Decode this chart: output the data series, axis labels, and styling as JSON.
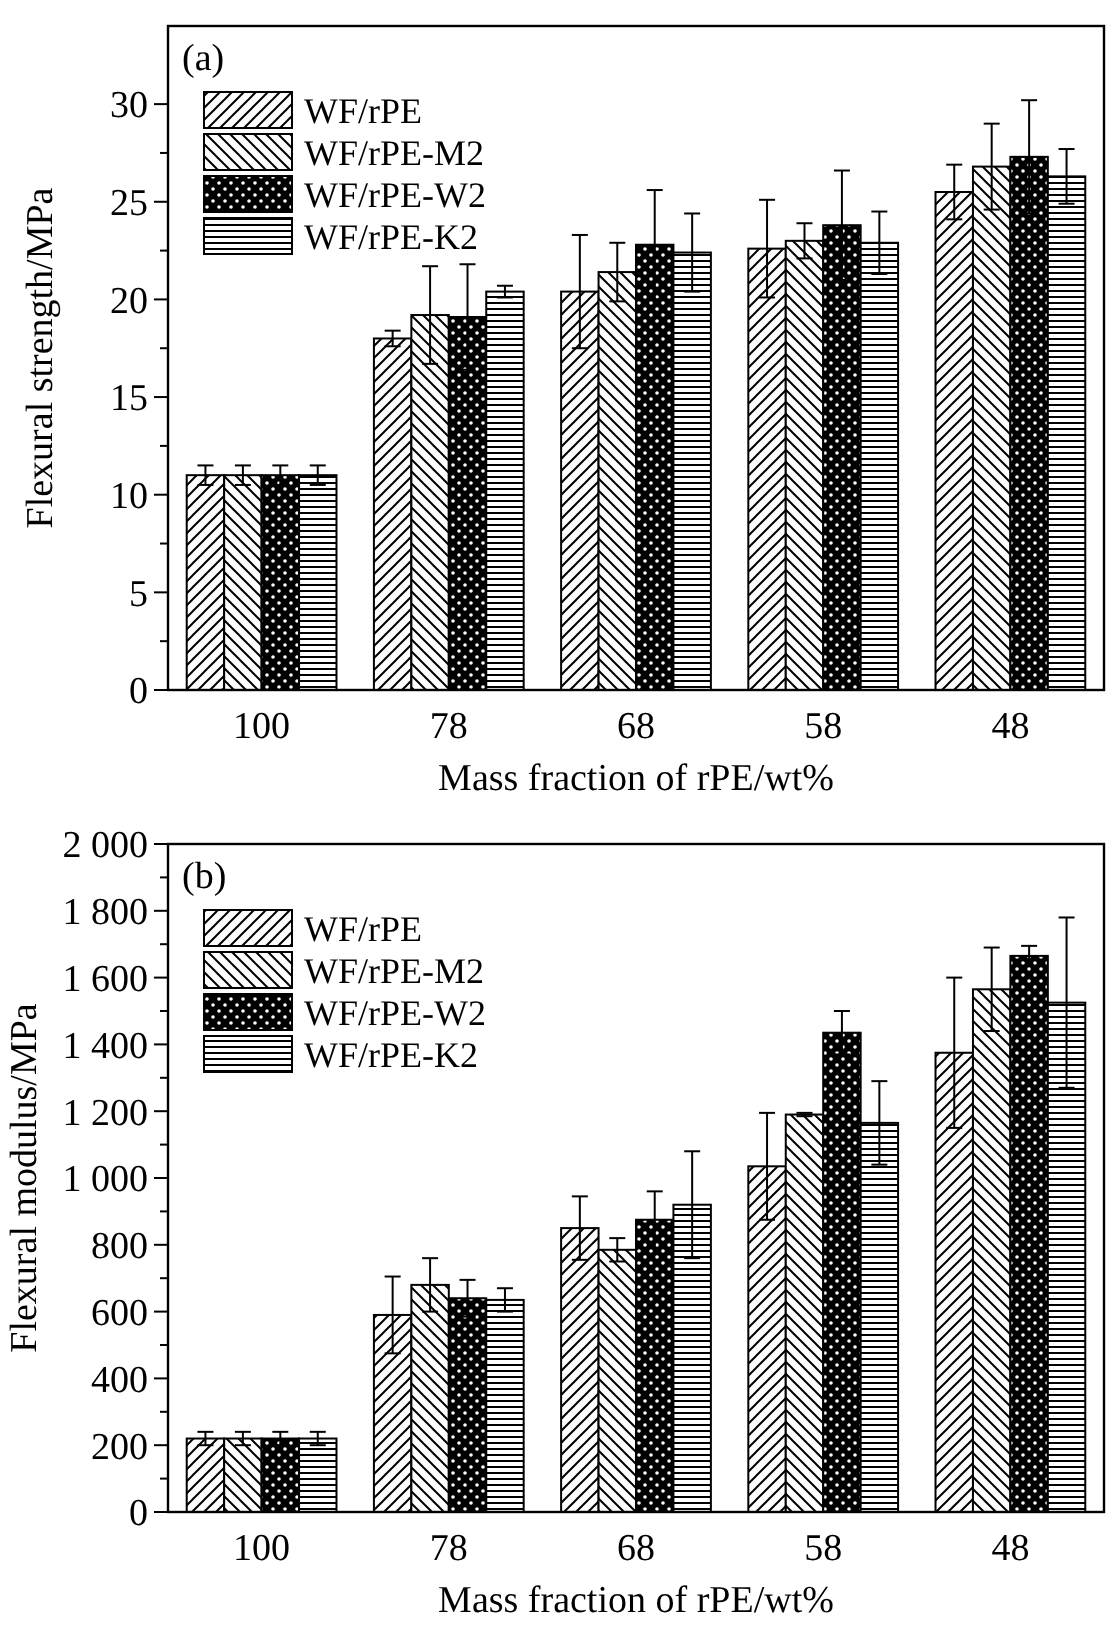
{
  "chart_data": [
    {
      "type": "bar",
      "annotations": [
        "(a)"
      ],
      "xlabel": "Mass fraction of rPE/wt%",
      "ylabel": "Flexural strength/MPa",
      "categories": [
        "100",
        "78",
        "68",
        "58",
        "48"
      ],
      "ylim": [
        0,
        34
      ],
      "yticks": [
        0,
        5,
        10,
        15,
        20,
        25,
        30
      ],
      "legend": "top left",
      "series": [
        {
          "name": "WF/rPE",
          "color": "#000000",
          "values": [
            11,
            18.0,
            20.4,
            22.6,
            25.5
          ],
          "errors": [
            0.5,
            0.4,
            2.9,
            2.5,
            1.4
          ]
        },
        {
          "name": "WF/rPE-M2",
          "color": "#000000",
          "values": [
            11,
            19.2,
            21.4,
            23.0,
            26.8
          ],
          "errors": [
            0.5,
            2.5,
            1.5,
            0.9,
            2.2
          ]
        },
        {
          "name": "WF/rPE-W2",
          "color": "#000000",
          "values": [
            11,
            19.1,
            22.8,
            23.8,
            27.3
          ],
          "errors": [
            0.5,
            2.7,
            2.8,
            2.8,
            2.9
          ]
        },
        {
          "name": "WF/rPE-K2",
          "color": "#000000",
          "values": [
            11,
            20.4,
            22.4,
            22.9,
            26.3
          ],
          "errors": [
            0.5,
            0.3,
            2.0,
            1.6,
            1.4
          ]
        }
      ]
    },
    {
      "type": "bar",
      "annotations": [
        "(b)"
      ],
      "xlabel": "Mass fraction of rPE/wt%",
      "ylabel": "Flexural modulus/MPa",
      "categories": [
        "100",
        "78",
        "68",
        "58",
        "48"
      ],
      "ylim": [
        0,
        2000
      ],
      "yticks": [
        0,
        200,
        400,
        600,
        800,
        {
          "value": 1000,
          "label": "1 000"
        },
        {
          "value": 1200,
          "label": "1 200"
        },
        {
          "value": 1400,
          "label": "1 400"
        },
        {
          "value": 1600,
          "label": "1 600"
        },
        {
          "value": 1800,
          "label": "1 800"
        },
        {
          "value": 2000,
          "label": "2 000"
        }
      ],
      "legend": "top left",
      "series": [
        {
          "name": "WF/rPE",
          "color": "#000000",
          "values": [
            220,
            590,
            850,
            1035,
            1375
          ],
          "errors": [
            20,
            115,
            95,
            160,
            225
          ]
        },
        {
          "name": "WF/rPE-M2",
          "color": "#000000",
          "values": [
            220,
            680,
            785,
            1190,
            1565
          ],
          "errors": [
            20,
            80,
            35,
            5,
            125
          ]
        },
        {
          "name": "WF/rPE-W2",
          "color": "#000000",
          "values": [
            220,
            640,
            875,
            1435,
            1665
          ],
          "errors": [
            20,
            55,
            85,
            65,
            30
          ]
        },
        {
          "name": "WF/rPE-K2",
          "color": "#000000",
          "values": [
            220,
            635,
            920,
            1165,
            1525
          ],
          "errors": [
            20,
            35,
            160,
            125,
            255
          ]
        }
      ]
    }
  ]
}
